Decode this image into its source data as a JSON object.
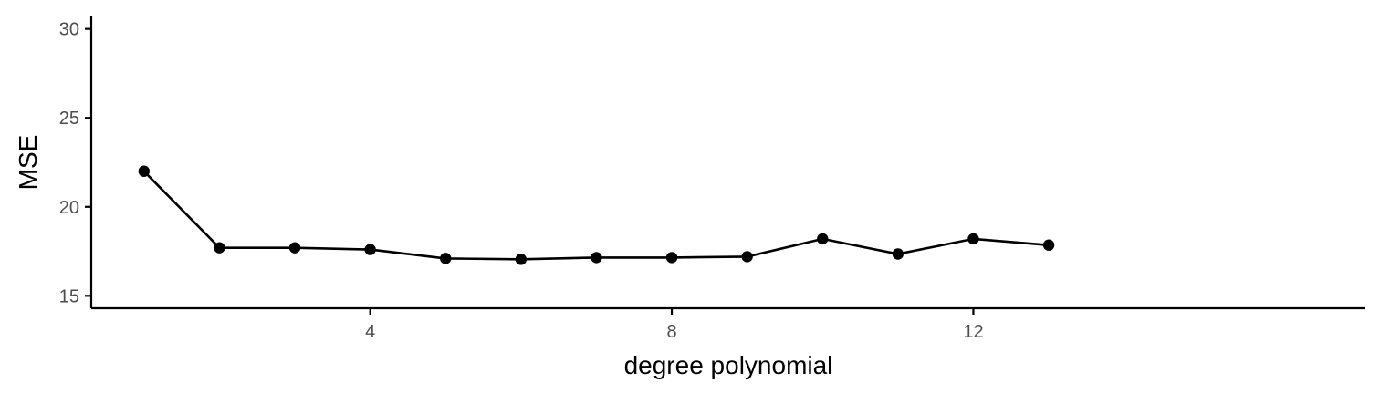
{
  "chart_data": {
    "type": "line",
    "xlabel": "degree polynomial",
    "ylabel": "MSE",
    "xlim": [
      0.3,
      17.2
    ],
    "ylim": [
      14.3,
      30.7
    ],
    "xticks": [
      4,
      8,
      12
    ],
    "yticks": [
      15,
      20,
      25,
      30
    ],
    "grid": false,
    "legend": "none",
    "series": [
      {
        "x": [
          1,
          2,
          3,
          4,
          5,
          6,
          7,
          8,
          9,
          10,
          11,
          12,
          13
        ],
        "y": [
          22.0,
          17.7,
          17.7,
          17.6,
          17.1,
          17.05,
          17.15,
          17.15,
          17.2,
          18.2,
          17.35,
          18.2,
          17.85
        ]
      }
    ],
    "colors": {
      "line": "#000000",
      "points": "#000000",
      "tick_text": "#4d4d4d"
    }
  }
}
